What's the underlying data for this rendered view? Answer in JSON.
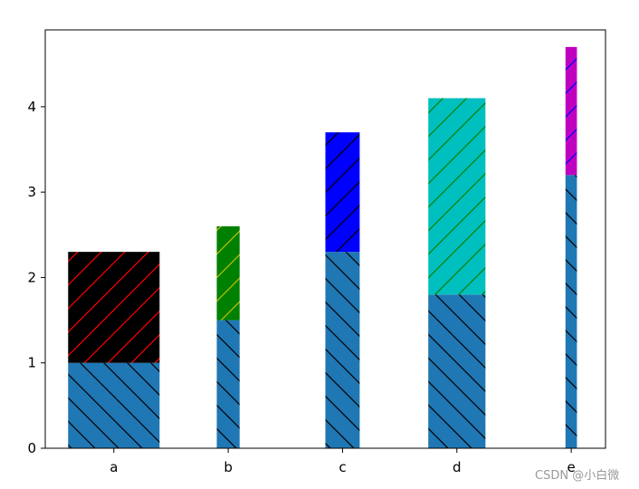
{
  "watermark": "CSDN @小白微",
  "chart_data": {
    "type": "bar",
    "stacked": true,
    "categories": [
      "a",
      "b",
      "c",
      "d",
      "e"
    ],
    "bar_widths": [
      0.8,
      0.2,
      0.3,
      0.5,
      0.1
    ],
    "series": [
      {
        "values": [
          1.0,
          1.5,
          2.3,
          1.8,
          3.2
        ],
        "colors": [
          "#1f77b4",
          "#1f77b4",
          "#1f77b4",
          "#1f77b4",
          "#1f77b4"
        ],
        "hatch": "\\",
        "hatch_colors": [
          "#000000",
          "#000000",
          "#000000",
          "#000000",
          "#000000"
        ]
      },
      {
        "values": [
          1.3,
          1.1,
          1.4,
          2.3,
          1.5
        ],
        "colors": [
          "#000000",
          "#008000",
          "#0000ff",
          "#00bfbf",
          "#bf00bf"
        ],
        "hatch": "/",
        "hatch_colors": [
          "#ff0000",
          "#bfbf00",
          "#000000",
          "#008000",
          "#0000ff"
        ]
      }
    ],
    "ylim": [
      0,
      4.9
    ],
    "yticks": [
      0,
      1,
      2,
      3,
      4
    ],
    "xlim": [
      -0.6,
      4.3
    ],
    "grid": false
  }
}
